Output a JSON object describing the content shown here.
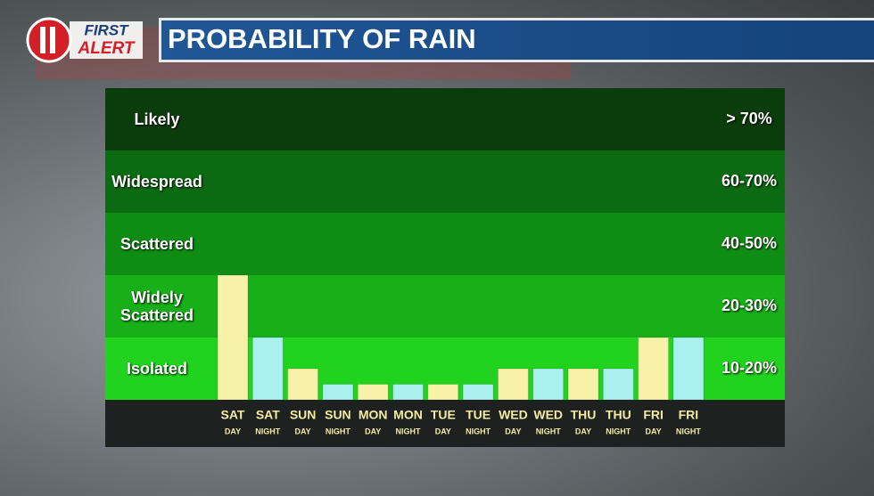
{
  "header": {
    "logo_top": "FIRST",
    "logo_bottom": "ALERT"
  },
  "chart_data": {
    "type": "bar",
    "title": "PROBABILITY OF RAIN",
    "bands": [
      {
        "name": "Isolated",
        "range": "10-20%",
        "color": "#21d31e"
      },
      {
        "name": "Widely Scattered",
        "range": "20-30%",
        "color": "#18b018"
      },
      {
        "name": "Scattered",
        "range": "40-50%",
        "color": "#0f8c14"
      },
      {
        "name": "Widespread",
        "range": "60-70%",
        "color": "#0c6a12"
      },
      {
        "name": "Likely",
        "range": "> 70%",
        "color": "#0a3c0c"
      }
    ],
    "categories": [
      "SAT",
      "SAT",
      "SUN",
      "SUN",
      "MON",
      "MON",
      "TUE",
      "TUE",
      "WED",
      "WED",
      "THU",
      "THU",
      "FRI",
      "FRI"
    ],
    "periods": [
      "DAY",
      "NIGHT",
      "DAY",
      "NIGHT",
      "DAY",
      "NIGHT",
      "DAY",
      "NIGHT",
      "DAY",
      "NIGHT",
      "DAY",
      "NIGHT",
      "DAY",
      "NIGHT"
    ],
    "values": [
      2,
      1,
      0.5,
      0.25,
      0.25,
      0.25,
      0.25,
      0.25,
      0.5,
      0.5,
      0.5,
      0.5,
      1,
      1
    ],
    "colors": [
      "#f7f2a8",
      "#a9f0ef",
      "#f7f2a8",
      "#a9f0ef",
      "#f7f2a8",
      "#a9f0ef",
      "#f7f2a8",
      "#a9f0ef",
      "#f7f2a8",
      "#a9f0ef",
      "#f7f2a8",
      "#a9f0ef",
      "#f7f2a8",
      "#a9f0ef"
    ],
    "ylim": [
      0,
      5
    ],
    "yticks": [
      0,
      1,
      2,
      3,
      4,
      5
    ]
  }
}
